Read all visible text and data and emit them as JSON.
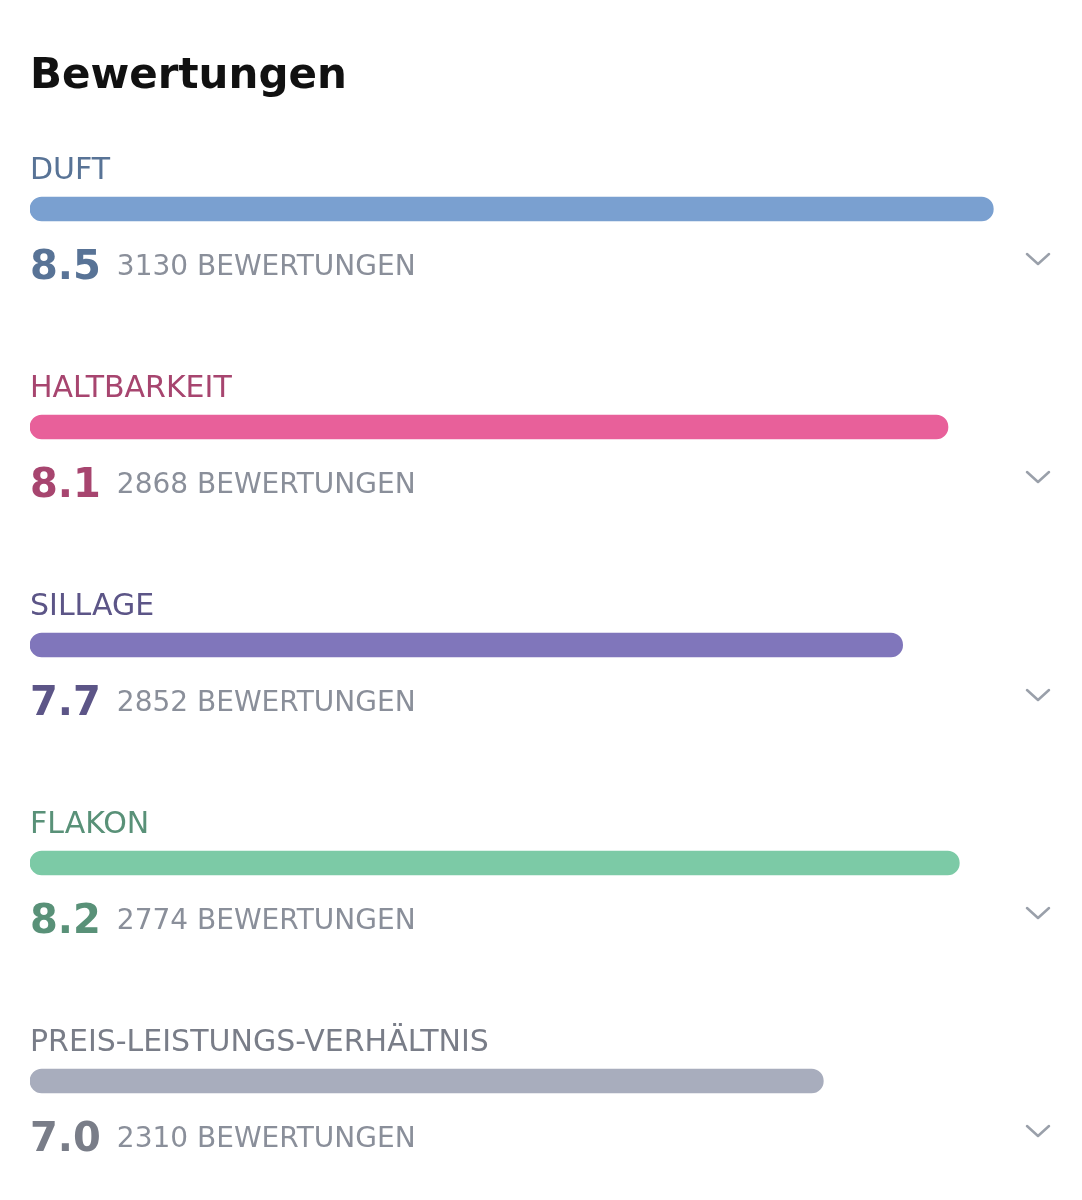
{
  "chart_data": {
    "type": "bar",
    "orientation": "horizontal",
    "title": "Bewertungen",
    "categories": [
      "DUFT",
      "HALTBARKEIT",
      "SILLAGE",
      "FLAKON",
      "PREIS-LEISTUNGS-VERHÄLTNIS"
    ],
    "values": [
      8.5,
      8.1,
      7.7,
      8.2,
      7.0
    ],
    "value_labels": [
      "8.5",
      "8.1",
      "7.7",
      "8.2",
      "7.0"
    ],
    "colors": [
      "#7aa0d0",
      "#e8609a",
      "#8076bb",
      "#7ccaa6",
      "#a8adbd"
    ],
    "tick_labels": false,
    "legend": false,
    "annotations": [
      "3130 BEWERTUNGEN",
      "2868 BEWERTUNGEN",
      "2852 BEWERTUNGEN",
      "2774 BEWERTUNGEN",
      "2310 BEWERTUNGEN"
    ]
  }
}
